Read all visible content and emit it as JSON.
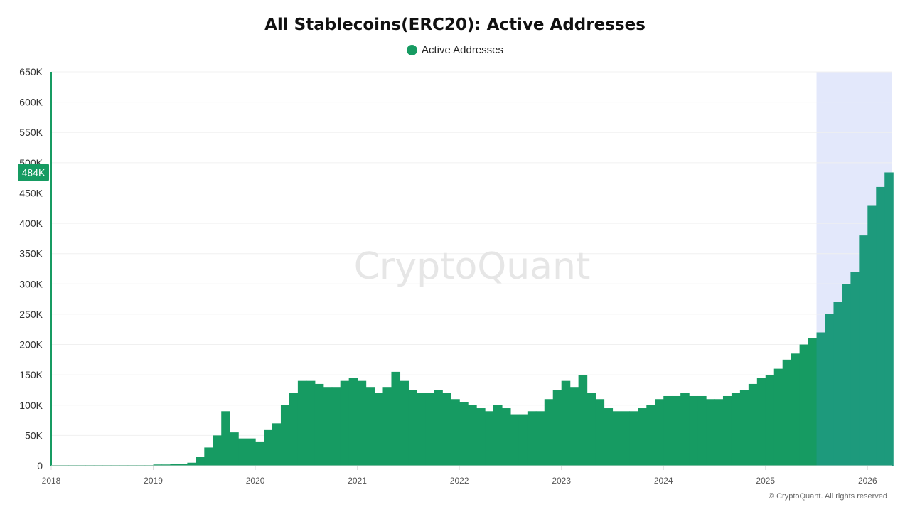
{
  "chart_data": {
    "type": "bar",
    "title": "All Stablecoins(ERC20): Active Addresses",
    "legend": [
      {
        "name": "Active Addresses",
        "color": "#169b62"
      }
    ],
    "legend_placement": "top-center",
    "xlabel": "",
    "ylabel": "",
    "ylim": [
      0,
      650000
    ],
    "xlim": [
      "2017-12",
      "2026-03"
    ],
    "y_ticks": [
      0,
      50000,
      100000,
      150000,
      200000,
      250000,
      300000,
      350000,
      400000,
      450000,
      500000,
      550000,
      600000,
      650000
    ],
    "y_tick_labels": [
      "0",
      "50K",
      "100K",
      "150K",
      "200K",
      "250K",
      "300K",
      "350K",
      "400K",
      "450K",
      "500K",
      "550K",
      "600K",
      "650K"
    ],
    "x_tick_labels": [
      "2018",
      "2019",
      "2020",
      "2021",
      "2022",
      "2023",
      "2024",
      "2025",
      "2026"
    ],
    "grid": "horizontal",
    "current_value_label": "484K",
    "highlight_range": [
      "2025-07",
      "2026-03"
    ],
    "colors": {
      "bar": "#169b62",
      "bar_highlight": "#1d9a7c",
      "highlight_bg": "#e3e8fb",
      "axis": "#169b62"
    },
    "watermark": "CryptoQuant",
    "series": [
      {
        "name": "Active Addresses",
        "x": [
          "2018-01",
          "2018-02",
          "2018-03",
          "2018-04",
          "2018-05",
          "2018-06",
          "2018-07",
          "2018-08",
          "2018-09",
          "2018-10",
          "2018-11",
          "2018-12",
          "2019-01",
          "2019-02",
          "2019-03",
          "2019-04",
          "2019-05",
          "2019-06",
          "2019-07",
          "2019-08",
          "2019-09",
          "2019-10",
          "2019-11",
          "2019-12",
          "2020-01",
          "2020-02",
          "2020-03",
          "2020-04",
          "2020-05",
          "2020-06",
          "2020-07",
          "2020-08",
          "2020-09",
          "2020-10",
          "2020-11",
          "2020-12",
          "2021-01",
          "2021-02",
          "2021-03",
          "2021-04",
          "2021-05",
          "2021-06",
          "2021-07",
          "2021-08",
          "2021-09",
          "2021-10",
          "2021-11",
          "2021-12",
          "2022-01",
          "2022-02",
          "2022-03",
          "2022-04",
          "2022-05",
          "2022-06",
          "2022-07",
          "2022-08",
          "2022-09",
          "2022-10",
          "2022-11",
          "2022-12",
          "2023-01",
          "2023-02",
          "2023-03",
          "2023-04",
          "2023-05",
          "2023-06",
          "2023-07",
          "2023-08",
          "2023-09",
          "2023-10",
          "2023-11",
          "2023-12",
          "2024-01",
          "2024-02",
          "2024-03",
          "2024-04",
          "2024-05",
          "2024-06",
          "2024-07",
          "2024-08",
          "2024-09",
          "2024-10",
          "2024-11",
          "2024-12",
          "2025-01",
          "2025-02",
          "2025-03",
          "2025-04",
          "2025-05",
          "2025-06",
          "2025-07",
          "2025-08",
          "2025-09",
          "2025-10",
          "2025-11",
          "2025-12",
          "2026-01",
          "2026-02",
          "2026-03"
        ],
        "values": [
          1000,
          1000,
          1000,
          1000,
          1000,
          1000,
          1000,
          1000,
          1000,
          1000,
          1000,
          1000,
          2000,
          2000,
          3000,
          3000,
          5000,
          15000,
          30000,
          50000,
          90000,
          55000,
          45000,
          45000,
          40000,
          60000,
          70000,
          100000,
          120000,
          140000,
          140000,
          135000,
          130000,
          130000,
          140000,
          145000,
          140000,
          130000,
          120000,
          130000,
          155000,
          140000,
          125000,
          120000,
          120000,
          125000,
          120000,
          110000,
          105000,
          100000,
          95000,
          90000,
          100000,
          95000,
          85000,
          85000,
          90000,
          90000,
          110000,
          125000,
          140000,
          130000,
          150000,
          120000,
          110000,
          95000,
          90000,
          90000,
          90000,
          95000,
          100000,
          110000,
          115000,
          115000,
          120000,
          115000,
          115000,
          110000,
          110000,
          115000,
          120000,
          125000,
          135000,
          145000,
          150000,
          160000,
          175000,
          185000,
          200000,
          210000,
          220000,
          250000,
          270000,
          300000,
          320000,
          380000,
          430000,
          460000,
          484000
        ]
      }
    ]
  },
  "credit": "© CryptoQuant. All rights reserved"
}
